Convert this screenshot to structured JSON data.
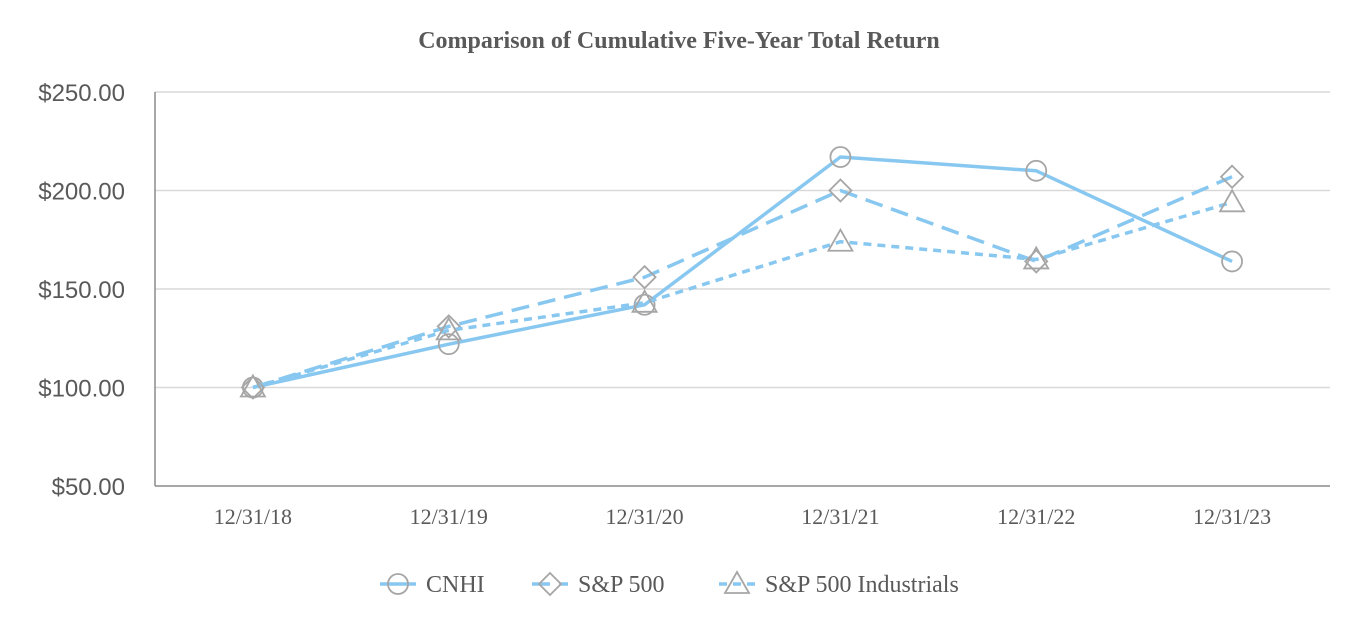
{
  "chart_data": {
    "type": "line",
    "title": "Comparison of Cumulative Five-Year Total Return",
    "xlabel": "",
    "ylabel": "",
    "categories": [
      "12/31/18",
      "12/31/19",
      "12/31/20",
      "12/31/21",
      "12/31/22",
      "12/31/23"
    ],
    "ylim": [
      50,
      250
    ],
    "yticks": [
      50,
      100,
      150,
      200,
      250
    ],
    "ytick_labels": [
      "$50.00",
      "$100.00",
      "$150.00",
      "$200.00",
      "$250.00"
    ],
    "grid": true,
    "legend_position": "bottom",
    "line_color": "#88c8f0",
    "marker_color": "#a6a6a6",
    "series": [
      {
        "name": "CNHI",
        "marker": "circle",
        "dash": "solid",
        "values": [
          100,
          122,
          142,
          217,
          210,
          164
        ]
      },
      {
        "name": "S&P 500",
        "marker": "diamond",
        "dash": "long-dash",
        "values": [
          100,
          131,
          156,
          200,
          164,
          207
        ]
      },
      {
        "name": "S&P 500 Industrials",
        "marker": "triangle",
        "dash": "short-dash",
        "values": [
          100,
          129,
          143,
          174,
          165,
          194
        ]
      }
    ]
  }
}
